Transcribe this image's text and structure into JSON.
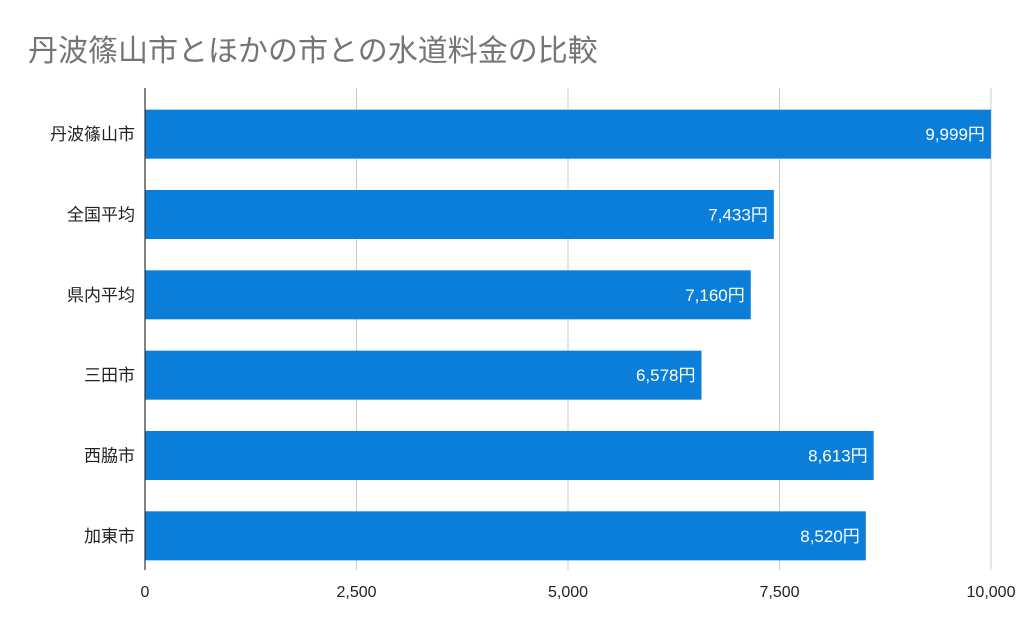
{
  "chart_data": {
    "type": "bar",
    "orientation": "horizontal",
    "title": "丹波篠山市とほかの市との水道料金の比較",
    "categories": [
      "丹波篠山市",
      "全国平均",
      "県内平均",
      "三田市",
      "西脇市",
      "加東市"
    ],
    "values": [
      9999,
      7433,
      7160,
      6578,
      8613,
      8520
    ],
    "data_labels": [
      "9,999円",
      "7,433円",
      "7,160円",
      "6,578円",
      "8,613円",
      "8,520円"
    ],
    "xlim": [
      0,
      10000
    ],
    "xticks": [
      0,
      2500,
      5000,
      7500,
      10000
    ],
    "xtick_labels": [
      "0",
      "2,500",
      "5,000",
      "7,500",
      "10,000"
    ],
    "grid": true,
    "bar_color": "#0b7ed9",
    "xlabel": "",
    "ylabel": ""
  }
}
